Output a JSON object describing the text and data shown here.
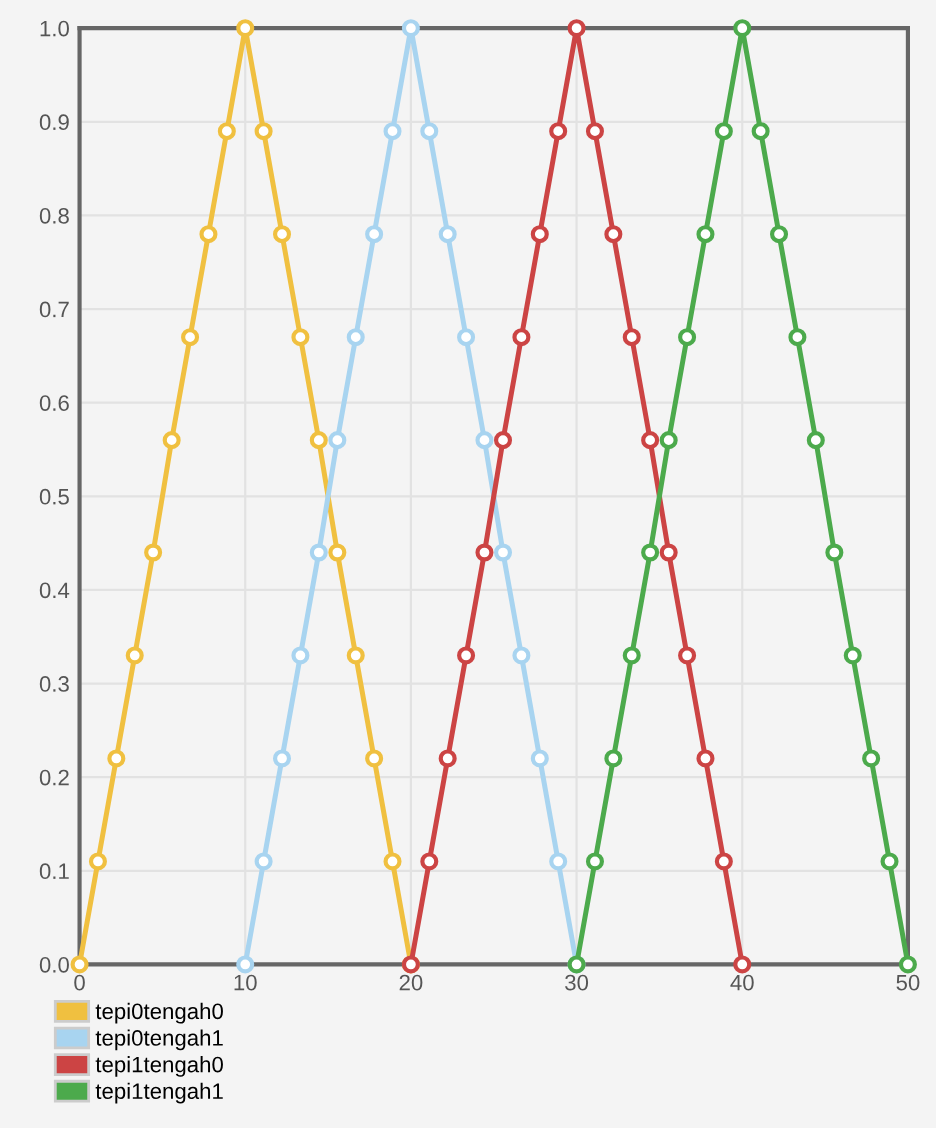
{
  "chart_data": {
    "type": "line",
    "xlim": [
      0,
      50
    ],
    "xticks": [
      0,
      10,
      20,
      30,
      40,
      50
    ],
    "ylim": [
      0,
      1
    ],
    "yticks": [
      {
        "value": 0,
        "label": "0.0"
      },
      0.1,
      0.2,
      0.3,
      0.4,
      0.5,
      0.6,
      0.7,
      0.8,
      0.9,
      {
        "value": 1,
        "label": "1.0"
      }
    ],
    "grid": true,
    "legend": "bottom left",
    "marker": "circle",
    "line_style": "solid",
    "series": [
      {
        "name": "tepi0tengah0",
        "color": "#f0c040",
        "x": [
          0,
          1.11,
          2.22,
          3.33,
          4.44,
          5.56,
          6.67,
          7.78,
          8.89,
          10,
          11.11,
          12.22,
          13.33,
          14.44,
          15.56,
          16.67,
          17.78,
          18.89,
          20
        ],
        "values": [
          0,
          0.11,
          0.22,
          0.33,
          0.44,
          0.56,
          0.67,
          0.78,
          0.89,
          1.0,
          0.89,
          0.78,
          0.67,
          0.56,
          0.44,
          0.33,
          0.22,
          0.11,
          0
        ]
      },
      {
        "name": "tepi0tengah1",
        "color": "#a8d4f0",
        "x": [
          10,
          11.11,
          12.22,
          13.33,
          14.44,
          15.56,
          16.67,
          17.78,
          18.89,
          20,
          21.11,
          22.22,
          23.33,
          24.44,
          25.56,
          26.67,
          27.78,
          28.89,
          30
        ],
        "values": [
          0,
          0.11,
          0.22,
          0.33,
          0.44,
          0.56,
          0.67,
          0.78,
          0.89,
          1.0,
          0.89,
          0.78,
          0.67,
          0.56,
          0.44,
          0.33,
          0.22,
          0.11,
          0
        ]
      },
      {
        "name": "tepi1tengah0",
        "color": "#cc4444",
        "x": [
          20,
          21.11,
          22.22,
          23.33,
          24.44,
          25.56,
          26.67,
          27.78,
          28.89,
          30,
          31.11,
          32.22,
          33.33,
          34.44,
          35.56,
          36.67,
          37.78,
          38.89,
          40
        ],
        "values": [
          0,
          0.11,
          0.22,
          0.33,
          0.44,
          0.56,
          0.67,
          0.78,
          0.89,
          1.0,
          0.89,
          0.78,
          0.67,
          0.56,
          0.44,
          0.33,
          0.22,
          0.11,
          0
        ]
      },
      {
        "name": "tepi1tengah1",
        "color": "#4caa4c",
        "x": [
          30,
          31.11,
          32.22,
          33.33,
          34.44,
          35.56,
          36.67,
          37.78,
          38.89,
          40,
          41.11,
          42.22,
          43.33,
          44.44,
          45.56,
          46.67,
          47.78,
          48.89,
          50
        ],
        "values": [
          0,
          0.11,
          0.22,
          0.33,
          0.44,
          0.56,
          0.67,
          0.78,
          0.89,
          1.0,
          0.89,
          0.78,
          0.67,
          0.56,
          0.44,
          0.33,
          0.22,
          0.11,
          0
        ]
      }
    ]
  }
}
